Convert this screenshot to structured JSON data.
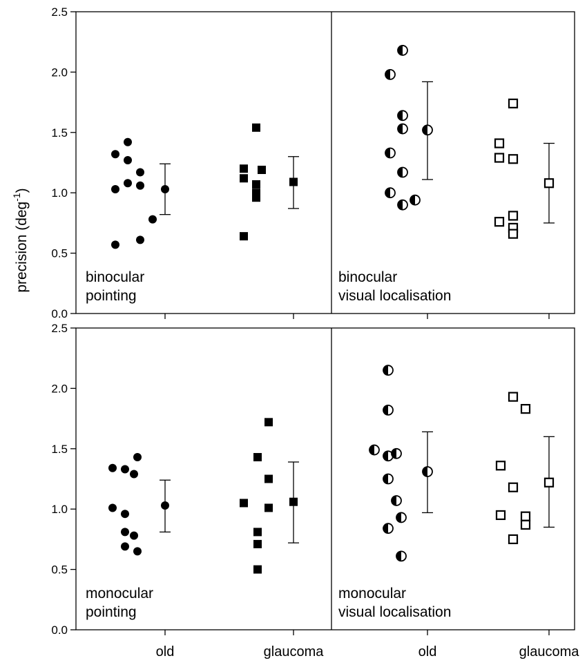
{
  "chart_data": {
    "type": "scatter",
    "ylabel": "precision (deg",
    "ylabel_sup": "-1",
    "ylabel_close": ")",
    "ylim": [
      0,
      2.5
    ],
    "yticks": [
      "0.0",
      "0.5",
      "1.0",
      "1.5",
      "2.0",
      "2.5"
    ],
    "categories": [
      "old",
      "glaucoma",
      "old",
      "glaucoma"
    ],
    "marker_styles": {
      "pointing_old": "filled-circle",
      "pointing_glaucoma": "filled-square",
      "visual_old": "half-filled-circle",
      "visual_glaucoma": "open-square"
    },
    "panels": [
      {
        "label_line1": "binocular",
        "label_line2": "pointing",
        "row": 0,
        "side": "left",
        "groups": [
          {
            "category": "old",
            "marker": "filled-circle",
            "points": [
              0.57,
              0.78,
              1.03,
              1.08,
              1.27,
              1.32,
              1.42,
              0.61,
              1.06,
              1.17
            ],
            "mean": 1.03,
            "err_low": 0.82,
            "err_high": 1.24
          },
          {
            "category": "glaucoma",
            "marker": "filled-square",
            "points": [
              1.2,
              1.12,
              0.64,
              0.96,
              1.07,
              1.54,
              1.0,
              1.19
            ],
            "mean": 1.09,
            "err_low": 0.87,
            "err_high": 1.3
          }
        ]
      },
      {
        "label_line1": "binocular",
        "label_line2": "visual localisation",
        "row": 0,
        "side": "right",
        "groups": [
          {
            "category": "old",
            "marker": "half-filled-circle",
            "points": [
              1.98,
              1.33,
              1.0,
              2.18,
              1.64,
              1.17,
              0.9,
              1.53,
              0.94
            ],
            "mean": 1.52,
            "err_low": 1.11,
            "err_high": 1.92
          },
          {
            "category": "glaucoma",
            "marker": "open-square",
            "points": [
              1.29,
              0.76,
              1.41,
              0.71,
              1.74,
              1.28,
              0.81,
              0.66
            ],
            "mean": 1.08,
            "err_low": 0.75,
            "err_high": 1.41
          }
        ]
      },
      {
        "label_line1": "monocular",
        "label_line2": "pointing",
        "row": 1,
        "side": "left",
        "groups": [
          {
            "category": "old",
            "marker": "filled-circle",
            "points": [
              1.34,
              1.01,
              0.69,
              1.33,
              0.96,
              0.81,
              0.65,
              1.43,
              1.29,
              0.78
            ],
            "mean": 1.03,
            "err_low": 0.81,
            "err_high": 1.24
          },
          {
            "category": "glaucoma",
            "marker": "filled-square",
            "points": [
              1.05,
              1.72,
              1.25,
              1.01,
              0.71,
              0.5,
              1.43,
              0.81
            ],
            "mean": 1.06,
            "err_low": 0.72,
            "err_high": 1.39
          }
        ]
      },
      {
        "label_line1": "monocular",
        "label_line2": "visual localisation",
        "row": 1,
        "side": "right",
        "groups": [
          {
            "category": "old",
            "marker": "half-filled-circle",
            "points": [
              1.49,
              1.25,
              0.84,
              2.15,
              1.82,
              1.44,
              0.93,
              0.61,
              1.46,
              1.07
            ],
            "mean": 1.31,
            "err_low": 0.97,
            "err_high": 1.64
          },
          {
            "category": "glaucoma",
            "marker": "open-square",
            "points": [
              1.36,
              0.95,
              1.93,
              1.18,
              0.75,
              1.83,
              0.94,
              0.87
            ],
            "mean": 1.22,
            "err_low": 0.85,
            "err_high": 1.6
          }
        ]
      }
    ]
  }
}
